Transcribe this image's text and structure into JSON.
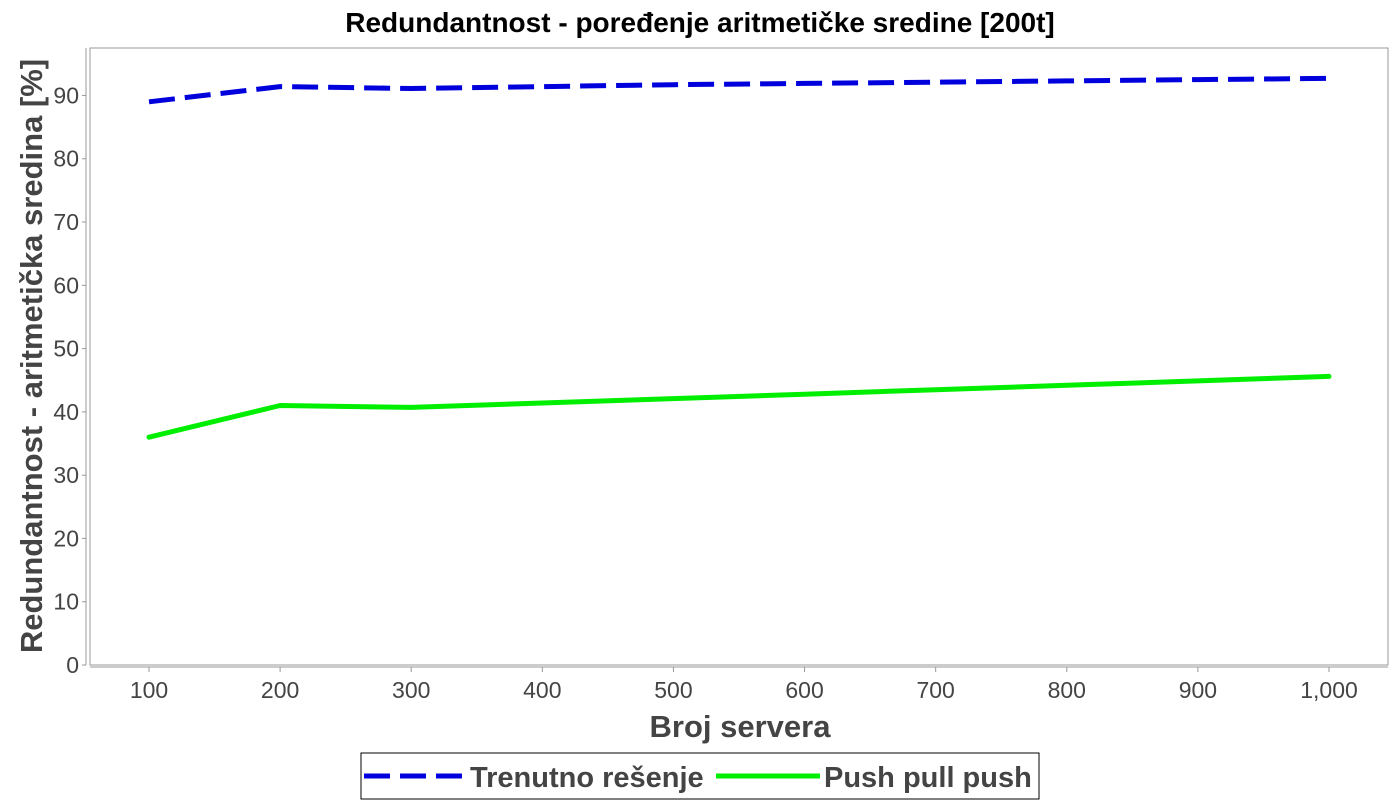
{
  "chart_data": {
    "type": "line",
    "title": "Redundantnost - poređenje aritmetičke sredine [200t]",
    "xlabel": "Broj servera",
    "ylabel": "Redundantnost - aritmetička sredina [%]",
    "x": [
      100,
      200,
      300,
      400,
      500,
      600,
      700,
      800,
      900,
      1000
    ],
    "x_tick_labels": [
      "100",
      "200",
      "300",
      "400",
      "500",
      "600",
      "700",
      "800",
      "900",
      "1,000"
    ],
    "xlim": [
      55,
      1045
    ],
    "y_ticks": [
      0,
      10,
      20,
      30,
      40,
      50,
      60,
      70,
      80,
      90
    ],
    "y_tick_labels": [
      "0",
      "10",
      "20",
      "30",
      "40",
      "50",
      "60",
      "70",
      "80",
      "90"
    ],
    "ylim": [
      0,
      97.5
    ],
    "grid": false,
    "legend_position": "bottom-center",
    "series": [
      {
        "name": "Trenutno rešenje",
        "color": "#0000dd",
        "style": "dashed",
        "values": [
          89.0,
          91.4,
          91.1,
          91.4,
          91.7,
          91.9,
          92.1,
          92.3,
          92.5,
          92.7
        ]
      },
      {
        "name": "Push pull push",
        "color": "#00ee00",
        "style": "solid",
        "values": [
          36.0,
          41.0,
          40.7,
          41.4,
          42.1,
          42.8,
          43.5,
          44.2,
          44.9,
          45.6
        ]
      }
    ]
  }
}
